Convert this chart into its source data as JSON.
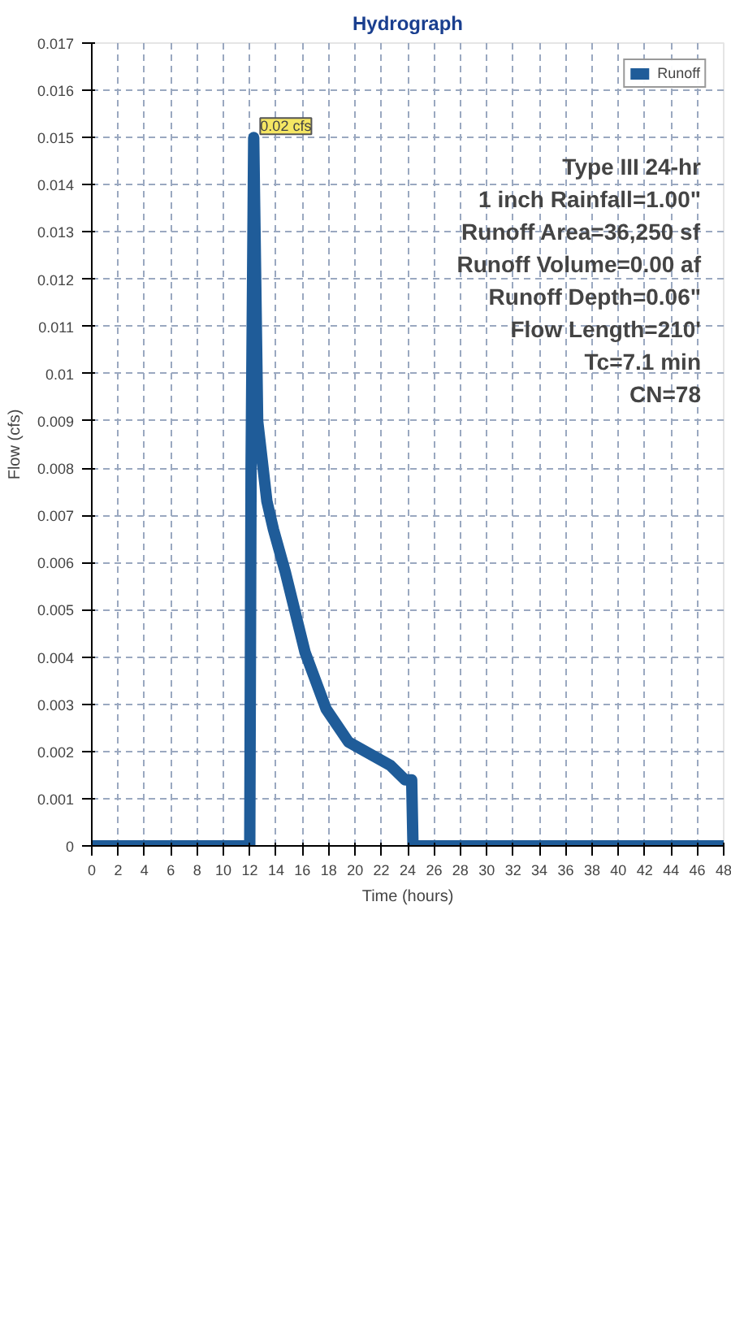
{
  "chart_data": {
    "type": "line",
    "title": "Hydrograph",
    "xlabel": "Time (hours)",
    "ylabel": "Flow (cfs)",
    "series": [
      {
        "name": "Runoff",
        "color": "#1f5c99",
        "x": [
          0,
          12.0,
          12.1,
          12.3,
          12.6,
          13.3,
          13.8,
          14.7,
          16.2,
          17.8,
          19.5,
          22.7,
          23.8,
          24.3,
          24.4,
          48
        ],
        "values": [
          0,
          0,
          0.008,
          0.015,
          0.009,
          0.0073,
          0.0067,
          0.0058,
          0.0041,
          0.0029,
          0.0022,
          0.0017,
          0.0014,
          0.0014,
          0,
          0
        ]
      }
    ],
    "xlim": [
      0,
      48
    ],
    "xticks": [
      0,
      2,
      4,
      6,
      8,
      10,
      12,
      14,
      16,
      18,
      20,
      22,
      24,
      26,
      28,
      30,
      32,
      34,
      36,
      38,
      40,
      42,
      44,
      46,
      48
    ],
    "ylim": [
      0,
      0.017
    ],
    "yticks": [
      {
        "value": 0,
        "label": "0"
      },
      0.001,
      0.002,
      0.003,
      0.004,
      0.005,
      0.006,
      0.007,
      0.008,
      0.009,
      0.01,
      0.011,
      0.012,
      0.013,
      0.014,
      0.015,
      0.016,
      0.017
    ],
    "annotations": [
      {
        "text": "0.02 cfs",
        "x": 12.3,
        "y": 0.015
      },
      "Type III 24-hr",
      "1 inch Rainfall=1.00\"",
      "Runoff Area=36,250 sf",
      "Runoff Volume=0.00 af",
      "Runoff Depth=0.06\"",
      "Flow Length=210'",
      "Tc=7.1 min",
      "CN=78"
    ],
    "grid": true,
    "legend": "top right",
    "line_style": "solid",
    "marker": "none"
  }
}
